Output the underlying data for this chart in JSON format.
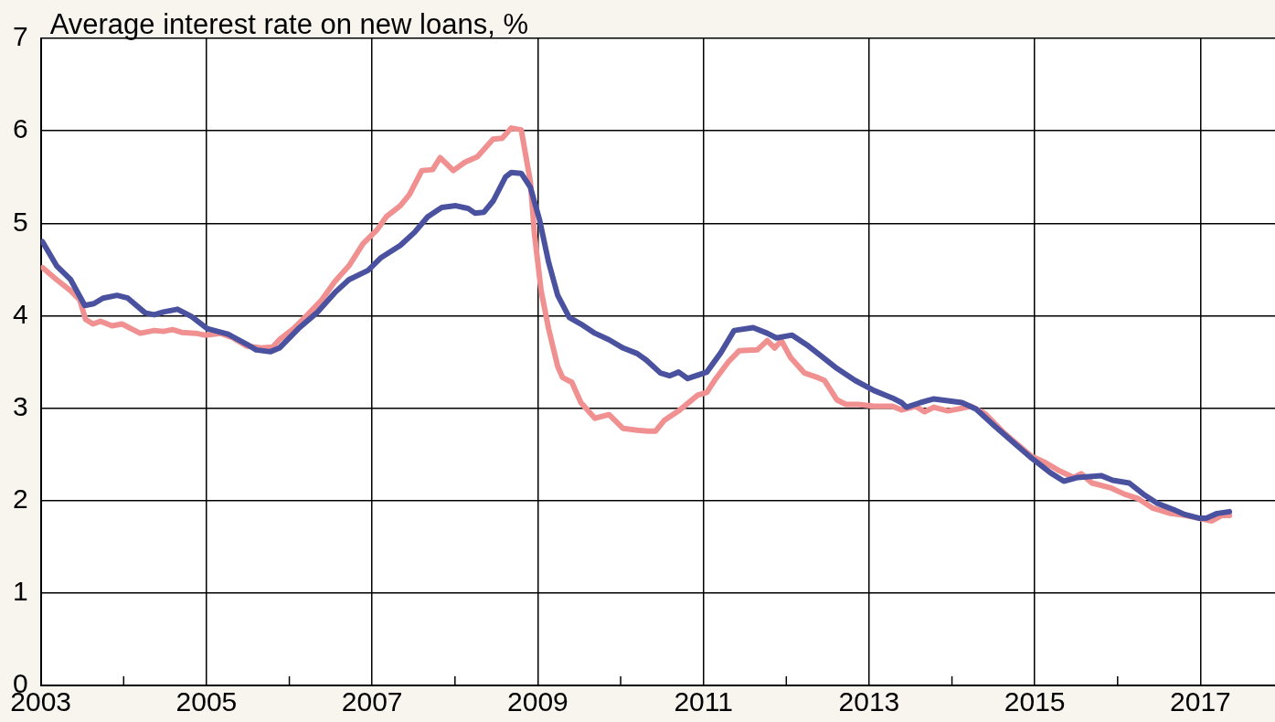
{
  "chart_data": {
    "type": "line",
    "title": "Average interest rate on new loans, %",
    "xlim": [
      2003,
      2017.9
    ],
    "xticks": [
      2003,
      {
        "value": 2004,
        "label": null
      },
      2005,
      {
        "value": 2006,
        "label": null
      },
      2007,
      {
        "value": 2008,
        "label": null
      },
      2009,
      {
        "value": 2010,
        "label": null
      },
      2011,
      {
        "value": 2012,
        "label": null
      },
      2013,
      {
        "value": 2014,
        "label": null
      },
      2015,
      {
        "value": 2016,
        "label": null
      },
      2017
    ],
    "ylim": [
      0,
      7
    ],
    "yticks": [
      0,
      1,
      2,
      3,
      4,
      5,
      6,
      7
    ],
    "grid": true,
    "legend": false,
    "marker": "none",
    "line_style": "solid",
    "series": [
      {
        "color": "#4a52a0",
        "x": [
          2003.02,
          2003.19,
          2003.36,
          2003.53,
          2003.64,
          2003.75,
          2003.92,
          2004.05,
          2004.26,
          2004.37,
          2004.48,
          2004.65,
          2004.82,
          2005.01,
          2005.26,
          2005.49,
          2005.6,
          2005.77,
          2005.88,
          2006.11,
          2006.33,
          2006.55,
          2006.72,
          2006.95,
          2007.11,
          2007.34,
          2007.51,
          2007.67,
          2007.84,
          2008.01,
          2008.16,
          2008.24,
          2008.35,
          2008.46,
          2008.61,
          2008.68,
          2008.8,
          2008.91,
          2009.02,
          2009.13,
          2009.24,
          2009.38,
          2009.52,
          2009.69,
          2009.86,
          2010.03,
          2010.2,
          2010.31,
          2010.48,
          2010.59,
          2010.7,
          2010.81,
          2011.04,
          2011.21,
          2011.37,
          2011.6,
          2011.77,
          2011.88,
          2012.07,
          2012.27,
          2012.44,
          2012.61,
          2012.83,
          2013.06,
          2013.28,
          2013.39,
          2013.45,
          2013.62,
          2013.78,
          2013.95,
          2014.12,
          2014.29,
          2014.51,
          2014.74,
          2014.96,
          2015.19,
          2015.35,
          2015.52,
          2015.8,
          2015.94,
          2016.14,
          2016.31,
          2016.48,
          2016.68,
          2016.81,
          2016.98,
          2017.07,
          2017.2,
          2017.35
        ],
        "values": [
          4.8,
          4.54,
          4.39,
          4.11,
          4.13,
          4.19,
          4.22,
          4.19,
          4.03,
          4.01,
          4.04,
          4.07,
          3.99,
          3.86,
          3.8,
          3.69,
          3.63,
          3.61,
          3.65,
          3.86,
          4.03,
          4.25,
          4.39,
          4.49,
          4.63,
          4.76,
          4.9,
          5.07,
          5.17,
          5.19,
          5.16,
          5.11,
          5.12,
          5.24,
          5.5,
          5.55,
          5.54,
          5.39,
          5.04,
          4.58,
          4.22,
          3.98,
          3.91,
          3.81,
          3.74,
          3.65,
          3.59,
          3.52,
          3.38,
          3.35,
          3.39,
          3.32,
          3.39,
          3.6,
          3.84,
          3.87,
          3.81,
          3.76,
          3.79,
          3.67,
          3.55,
          3.43,
          3.3,
          3.19,
          3.11,
          3.06,
          3.01,
          3.06,
          3.1,
          3.08,
          3.06,
          2.99,
          2.81,
          2.63,
          2.46,
          2.3,
          2.21,
          2.25,
          2.27,
          2.22,
          2.19,
          2.07,
          1.97,
          1.9,
          1.85,
          1.81,
          1.81,
          1.86,
          1.88
        ]
      },
      {
        "color": "#f09090",
        "x": [
          2003.02,
          2003.19,
          2003.36,
          2003.47,
          2003.54,
          2003.63,
          2003.72,
          2003.86,
          2003.98,
          2004.09,
          2004.2,
          2004.37,
          2004.48,
          2004.59,
          2004.7,
          2004.87,
          2004.98,
          2005.17,
          2005.32,
          2005.49,
          2005.66,
          2005.8,
          2005.88,
          2006.05,
          2006.22,
          2006.39,
          2006.55,
          2006.72,
          2006.89,
          2007.06,
          2007.17,
          2007.34,
          2007.45,
          2007.6,
          2007.73,
          2007.82,
          2007.98,
          2008.12,
          2008.27,
          2008.46,
          2008.57,
          2008.68,
          2008.8,
          2008.91,
          2008.96,
          2009.04,
          2009.13,
          2009.24,
          2009.3,
          2009.41,
          2009.52,
          2009.69,
          2009.86,
          2010.03,
          2010.2,
          2010.33,
          2010.42,
          2010.53,
          2010.7,
          2010.93,
          2011.04,
          2011.15,
          2011.3,
          2011.43,
          2011.65,
          2011.77,
          2011.86,
          2011.94,
          2012.05,
          2012.22,
          2012.38,
          2012.46,
          2012.61,
          2012.72,
          2012.87,
          2013.06,
          2013.28,
          2013.39,
          2013.56,
          2013.67,
          2013.78,
          2013.95,
          2014.07,
          2014.23,
          2014.4,
          2014.63,
          2014.96,
          2015.13,
          2015.3,
          2015.47,
          2015.56,
          2015.69,
          2015.91,
          2016.08,
          2016.25,
          2016.42,
          2016.64,
          2016.81,
          2017.03,
          2017.14,
          2017.26,
          2017.35
        ],
        "values": [
          4.52,
          4.39,
          4.27,
          4.17,
          3.96,
          3.91,
          3.94,
          3.89,
          3.91,
          3.86,
          3.81,
          3.84,
          3.83,
          3.85,
          3.82,
          3.81,
          3.79,
          3.81,
          3.76,
          3.67,
          3.65,
          3.66,
          3.74,
          3.86,
          4.01,
          4.17,
          4.37,
          4.54,
          4.78,
          4.93,
          5.07,
          5.19,
          5.31,
          5.57,
          5.58,
          5.71,
          5.57,
          5.66,
          5.72,
          5.91,
          5.92,
          6.03,
          6.01,
          5.45,
          4.88,
          4.27,
          3.86,
          3.45,
          3.33,
          3.28,
          3.06,
          2.89,
          2.93,
          2.78,
          2.76,
          2.75,
          2.75,
          2.87,
          2.97,
          3.14,
          3.17,
          3.32,
          3.5,
          3.62,
          3.63,
          3.73,
          3.65,
          3.73,
          3.55,
          3.38,
          3.33,
          3.3,
          3.09,
          3.04,
          3.04,
          3.02,
          3.02,
          2.98,
          3.02,
          2.96,
          3.01,
          2.97,
          2.99,
          3.02,
          2.94,
          2.73,
          2.48,
          2.41,
          2.32,
          2.25,
          2.29,
          2.19,
          2.14,
          2.07,
          2.02,
          1.92,
          1.86,
          1.84,
          1.8,
          1.78,
          1.84,
          1.84
        ]
      }
    ]
  }
}
